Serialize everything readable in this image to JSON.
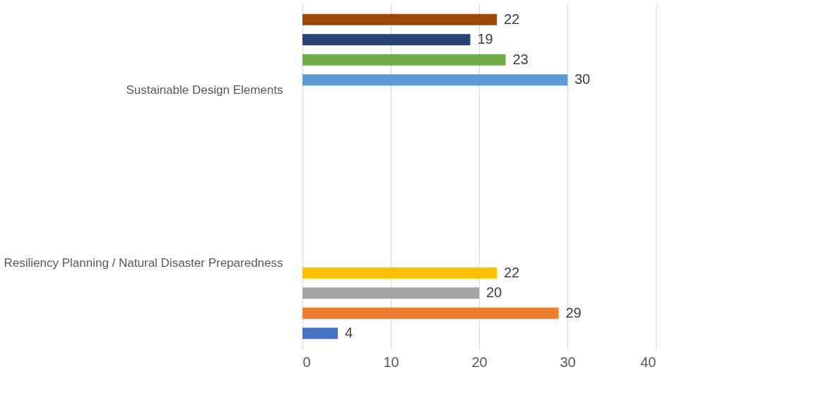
{
  "chart_data": {
    "type": "bar",
    "orientation": "horizontal",
    "categories": [
      "Sustainable Design Elements",
      "Resiliency Planning / Natural Disaster Preparedness"
    ],
    "series": [
      {
        "color": "#4472c4",
        "values": [
          null,
          4
        ]
      },
      {
        "color": "#ed7d31",
        "values": [
          null,
          29
        ]
      },
      {
        "color": "#a5a5a5",
        "values": [
          null,
          20
        ]
      },
      {
        "color": "#ffc000",
        "values": [
          null,
          22
        ]
      },
      {
        "color": "#5b9bd5",
        "values": [
          30,
          null
        ]
      },
      {
        "color": "#70ad47",
        "values": [
          23,
          null
        ]
      },
      {
        "color": "#264478",
        "values": [
          19,
          null
        ]
      },
      {
        "color": "#9e480e",
        "values": [
          22,
          null
        ]
      }
    ],
    "xlim": [
      0,
      40
    ],
    "xticks": [
      0,
      10,
      20,
      30,
      40
    ],
    "grid": "x",
    "data_labels": true
  }
}
